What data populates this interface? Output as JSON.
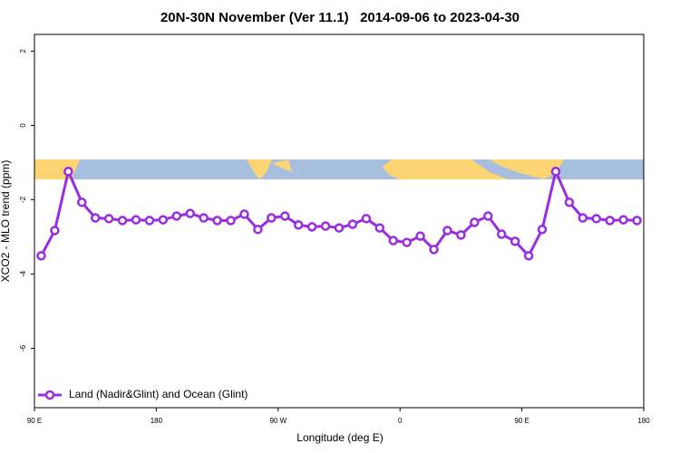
{
  "chart_data": {
    "type": "line",
    "title": "20N-30N November (Ver 11.1)   2014-09-06 to 2023-04-30",
    "x_label": "Longitude (deg E)",
    "y_label": "XCO2 - MLO trend (ppm)",
    "x": [
      95,
      105,
      115,
      125,
      135,
      145,
      155,
      165,
      175,
      185,
      195,
      205,
      215,
      225,
      235,
      245,
      255,
      265,
      275,
      285,
      295,
      305,
      315,
      325,
      335,
      345,
      355,
      365,
      375,
      385,
      395,
      405,
      415,
      425,
      435,
      445,
      455,
      465,
      475,
      485,
      495,
      505,
      515,
      525,
      535
    ],
    "series": [
      {
        "name": "Land (Nadir&Glint) and Ocean (Glint)",
        "color": "#9b2de0",
        "values": [
          -3.51,
          -2.83,
          -1.24,
          -2.07,
          -2.49,
          -2.51,
          -2.56,
          -2.54,
          -2.56,
          -2.54,
          -2.44,
          -2.37,
          -2.49,
          -2.56,
          -2.56,
          -2.39,
          -2.8,
          -2.49,
          -2.44,
          -2.68,
          -2.73,
          -2.71,
          -2.76,
          -2.66,
          -2.51,
          -2.76,
          -3.1,
          -3.15,
          -2.98,
          -3.34,
          -2.83,
          -2.95,
          -2.61,
          -2.44,
          -2.93,
          -3.12,
          -3.51,
          -2.8,
          -1.24,
          -2.07,
          -2.49,
          -2.51,
          -2.56,
          -2.54,
          -2.56
        ]
      }
    ],
    "xlim": [
      90,
      540
    ],
    "xticks": [
      {
        "value": 90,
        "label": "90 E"
      },
      180,
      {
        "value": 270,
        "label": "90 W"
      },
      {
        "value": 360,
        "label": "0"
      },
      {
        "value": 450,
        "label": "90 E"
      },
      {
        "value": 540,
        "label": "180"
      }
    ],
    "ylim": [
      -7.6,
      2.45
    ],
    "yticks": [
      2,
      0,
      -2,
      -4,
      -6
    ],
    "legend": "bottom-left"
  }
}
